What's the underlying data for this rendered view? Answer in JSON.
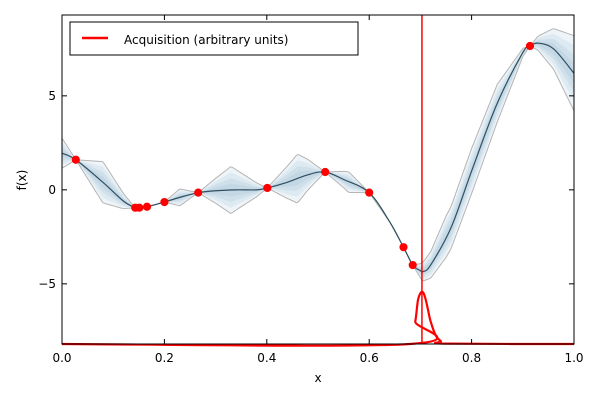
{
  "chart_data": {
    "type": "line",
    "xlabel": "x",
    "ylabel": "f(x)",
    "xlim": [
      0.0,
      1.0
    ],
    "ylim": [
      -8.2,
      9.3
    ],
    "x_ticks": [
      "0.0",
      "0.2",
      "0.4",
      "0.6",
      "0.8",
      "1.0"
    ],
    "y_ticks": [
      "−5",
      "0",
      "5"
    ],
    "grid": false,
    "legend_position": "top-left",
    "legend": [
      {
        "label": "Acquisition (arbitrary units)",
        "color": "#ff0000"
      }
    ],
    "colors": {
      "mean_line": "#2f4f5f",
      "uncertainty_band": "#4682b4",
      "confidence_bound": "#b4b4b4",
      "observations": "#ff0000",
      "acquisition": "#ff0000",
      "next_sample_marker": "#ff0000"
    },
    "next_sample_x": 0.703,
    "observations": {
      "x": [
        0.027,
        0.143,
        0.151,
        0.166,
        0.2,
        0.266,
        0.401,
        0.514,
        0.6,
        0.667,
        0.685,
        0.914
      ],
      "y": [
        1.6,
        -0.95,
        -0.95,
        -0.9,
        -0.65,
        -0.15,
        0.1,
        0.95,
        -0.15,
        -3.05,
        -4.0,
        7.65
      ]
    },
    "posterior_mean": {
      "x": [
        0.0,
        0.027,
        0.08,
        0.12,
        0.143,
        0.151,
        0.166,
        0.2,
        0.23,
        0.266,
        0.3,
        0.34,
        0.38,
        0.401,
        0.44,
        0.48,
        0.514,
        0.55,
        0.6,
        0.64,
        0.667,
        0.685,
        0.7,
        0.705,
        0.72,
        0.76,
        0.8,
        0.85,
        0.9,
        0.914,
        0.93,
        0.96,
        1.0
      ],
      "y": [
        1.95,
        1.6,
        0.4,
        -0.6,
        -0.95,
        -0.95,
        -0.9,
        -0.65,
        -0.4,
        -0.15,
        -0.05,
        0.0,
        0.0,
        0.1,
        0.4,
        0.8,
        0.95,
        0.55,
        -0.15,
        -1.7,
        -3.05,
        -4.0,
        -4.3,
        -4.35,
        -4.0,
        -2.0,
        1.0,
        4.6,
        7.3,
        7.65,
        7.8,
        7.5,
        6.2
      ]
    },
    "bound_offset": {
      "x": [
        0.0,
        0.027,
        0.08,
        0.143,
        0.166,
        0.2,
        0.23,
        0.266,
        0.33,
        0.401,
        0.46,
        0.514,
        0.56,
        0.6,
        0.667,
        0.685,
        0.705,
        0.75,
        0.8,
        0.85,
        0.914,
        0.95,
        1.0
      ],
      "d": [
        0.8,
        0.0,
        1.1,
        0.0,
        0.0,
        0.0,
        0.45,
        0.0,
        1.25,
        0.0,
        1.3,
        0.0,
        0.55,
        0.0,
        0.0,
        0.0,
        0.5,
        1.1,
        1.2,
        1.0,
        0.0,
        0.85,
        2.0
      ]
    },
    "acquisition": {
      "x": [
        0.0,
        0.68,
        0.69,
        0.695,
        0.7,
        0.705,
        0.71,
        0.715,
        0.72,
        0.73,
        0.74,
        0.75,
        1.0
      ],
      "y": [
        -8.2,
        -8.2,
        -7.0,
        -5.9,
        -5.5,
        -5.45,
        -5.8,
        -6.4,
        -7.0,
        -7.75,
        -8.05,
        -8.18,
        -8.2
      ]
    }
  }
}
